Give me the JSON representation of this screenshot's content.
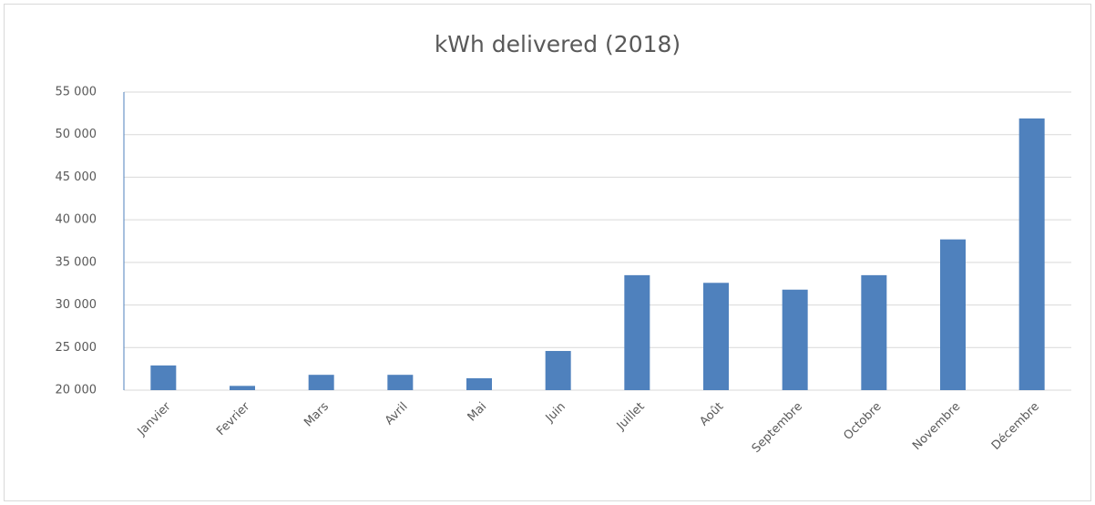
{
  "chart_data": {
    "type": "bar",
    "title": "kWh delivered (2018)",
    "categories": [
      "Janvier",
      "Fevrier",
      "Mars",
      "Avril",
      "Mai",
      "Juin",
      "Juillet",
      "Août",
      "Septembre",
      "Octobre",
      "Novembre",
      "Décembre"
    ],
    "values": [
      22900,
      20500,
      21800,
      21800,
      21400,
      24600,
      33500,
      32600,
      31800,
      33500,
      37700,
      51900
    ],
    "color": "#4f81bd",
    "ylim": [
      20000,
      55000
    ],
    "yticks": [
      {
        "value": 20000,
        "label": "20 000"
      },
      {
        "value": 25000,
        "label": "25 000"
      },
      {
        "value": 30000,
        "label": "30 000"
      },
      {
        "value": 35000,
        "label": "35 000"
      },
      {
        "value": 40000,
        "label": "40 000"
      },
      {
        "value": 45000,
        "label": "45 000"
      },
      {
        "value": 50000,
        "label": "50 000"
      },
      {
        "value": 55000,
        "label": "55 000"
      }
    ],
    "grid": true
  }
}
